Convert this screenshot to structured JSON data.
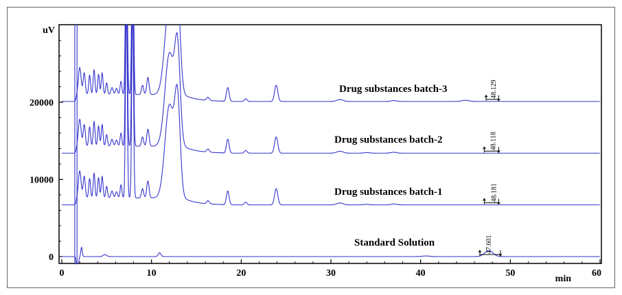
{
  "chart_data": {
    "type": "line",
    "title": "",
    "xlabel": "min",
    "ylabel": "uV",
    "xlim": [
      0,
      60
    ],
    "ylim": [
      -1000,
      30000
    ],
    "x_ticks": [
      0,
      10,
      20,
      30,
      40,
      50,
      60
    ],
    "x_tick_labels": [
      "0",
      "10",
      "20",
      "30",
      "40",
      "50",
      "60"
    ],
    "y_ticks": [
      0,
      10000,
      20000
    ],
    "y_tick_labels": [
      "0",
      "10000",
      "20000"
    ],
    "grid": false,
    "line_color": "#3333cc",
    "series": [
      {
        "name": "Standard Solution",
        "baseline": 0,
        "peaks": [
          {
            "rt": 1.75,
            "height": -2000,
            "width": 0.1
          },
          {
            "rt": 2.2,
            "height": 1200,
            "width": 0.08
          },
          {
            "rt": 4.8,
            "height": 250,
            "width": 0.2
          },
          {
            "rt": 10.9,
            "height": 500,
            "width": 0.15
          },
          {
            "rt": 40.6,
            "height": 80,
            "width": 0.4
          },
          {
            "rt": 47.6,
            "height": 800,
            "width": 0.45
          }
        ],
        "peak_label": "47.601",
        "peak_label_rt": 47.601
      },
      {
        "name": "Drug substances batch-1",
        "baseline": 6700,
        "peaks": [
          {
            "rt": 2.0,
            "height": 3500,
            "width": 0.15
          },
          {
            "rt": 2.5,
            "height": 2800,
            "width": 0.12
          },
          {
            "rt": 3.1,
            "height": 2500,
            "width": 0.1
          },
          {
            "rt": 3.6,
            "height": 3200,
            "width": 0.1
          },
          {
            "rt": 4.1,
            "height": 2600,
            "width": 0.1
          },
          {
            "rt": 4.5,
            "height": 2800,
            "width": 0.1
          },
          {
            "rt": 5.0,
            "height": 1500,
            "width": 0.1
          },
          {
            "rt": 5.6,
            "height": 900,
            "width": 0.12
          },
          {
            "rt": 6.1,
            "height": 800,
            "width": 0.12
          },
          {
            "rt": 6.6,
            "height": 1700,
            "width": 0.1
          },
          {
            "rt": 7.2,
            "height": 25000,
            "width": 0.1
          },
          {
            "rt": 7.9,
            "height": 25000,
            "width": 0.1
          },
          {
            "rt": 9.0,
            "height": 1200,
            "width": 0.12
          },
          {
            "rt": 9.6,
            "height": 2200,
            "width": 0.13
          },
          {
            "rt": 12.0,
            "height": 12000,
            "width": 0.5
          },
          {
            "rt": 12.9,
            "height": 12000,
            "width": 0.3
          },
          {
            "rt": 16.3,
            "height": 400,
            "width": 0.15
          },
          {
            "rt": 18.5,
            "height": 1800,
            "width": 0.15
          },
          {
            "rt": 20.5,
            "height": 350,
            "width": 0.15
          },
          {
            "rt": 23.9,
            "height": 2100,
            "width": 0.18
          },
          {
            "rt": 31.0,
            "height": 250,
            "width": 0.35
          },
          {
            "rt": 34.0,
            "height": 80,
            "width": 0.3
          },
          {
            "rt": 37.0,
            "height": 120,
            "width": 0.3
          }
        ],
        "peak_label": "48.181",
        "peak_label_rt": 48.181
      },
      {
        "name": "Drug substances batch-2",
        "baseline": 13400,
        "peaks": [
          {
            "rt": 2.0,
            "height": 3500,
            "width": 0.15
          },
          {
            "rt": 2.5,
            "height": 2800,
            "width": 0.12
          },
          {
            "rt": 3.1,
            "height": 2500,
            "width": 0.1
          },
          {
            "rt": 3.6,
            "height": 3200,
            "width": 0.1
          },
          {
            "rt": 4.1,
            "height": 2600,
            "width": 0.1
          },
          {
            "rt": 4.5,
            "height": 2800,
            "width": 0.1
          },
          {
            "rt": 5.0,
            "height": 1500,
            "width": 0.1
          },
          {
            "rt": 5.6,
            "height": 900,
            "width": 0.12
          },
          {
            "rt": 6.1,
            "height": 800,
            "width": 0.12
          },
          {
            "rt": 6.6,
            "height": 1700,
            "width": 0.1
          },
          {
            "rt": 7.2,
            "height": 25000,
            "width": 0.1
          },
          {
            "rt": 7.9,
            "height": 25000,
            "width": 0.1
          },
          {
            "rt": 9.0,
            "height": 1200,
            "width": 0.12
          },
          {
            "rt": 9.6,
            "height": 2200,
            "width": 0.13
          },
          {
            "rt": 12.0,
            "height": 12000,
            "width": 0.5
          },
          {
            "rt": 12.9,
            "height": 12000,
            "width": 0.3
          },
          {
            "rt": 16.3,
            "height": 400,
            "width": 0.15
          },
          {
            "rt": 18.5,
            "height": 1800,
            "width": 0.15
          },
          {
            "rt": 20.5,
            "height": 350,
            "width": 0.15
          },
          {
            "rt": 23.9,
            "height": 2100,
            "width": 0.18
          },
          {
            "rt": 31.0,
            "height": 250,
            "width": 0.35
          },
          {
            "rt": 34.0,
            "height": 80,
            "width": 0.3
          },
          {
            "rt": 37.0,
            "height": 120,
            "width": 0.3
          }
        ],
        "peak_label": "48.118",
        "peak_label_rt": 48.118
      },
      {
        "name": "Drug substances batch-3",
        "baseline": 20100,
        "peaks": [
          {
            "rt": 2.0,
            "height": 3500,
            "width": 0.15
          },
          {
            "rt": 2.5,
            "height": 2800,
            "width": 0.12
          },
          {
            "rt": 3.1,
            "height": 2500,
            "width": 0.1
          },
          {
            "rt": 3.6,
            "height": 3200,
            "width": 0.1
          },
          {
            "rt": 4.1,
            "height": 2600,
            "width": 0.1
          },
          {
            "rt": 4.5,
            "height": 2800,
            "width": 0.1
          },
          {
            "rt": 5.0,
            "height": 1500,
            "width": 0.1
          },
          {
            "rt": 5.6,
            "height": 900,
            "width": 0.12
          },
          {
            "rt": 6.1,
            "height": 800,
            "width": 0.12
          },
          {
            "rt": 6.6,
            "height": 1700,
            "width": 0.1
          },
          {
            "rt": 7.2,
            "height": 25000,
            "width": 0.1
          },
          {
            "rt": 7.9,
            "height": 25000,
            "width": 0.1
          },
          {
            "rt": 9.0,
            "height": 1200,
            "width": 0.12
          },
          {
            "rt": 9.6,
            "height": 2200,
            "width": 0.13
          },
          {
            "rt": 12.0,
            "height": 12000,
            "width": 0.5
          },
          {
            "rt": 12.9,
            "height": 12000,
            "width": 0.3
          },
          {
            "rt": 16.3,
            "height": 400,
            "width": 0.15
          },
          {
            "rt": 18.5,
            "height": 1800,
            "width": 0.15
          },
          {
            "rt": 20.5,
            "height": 350,
            "width": 0.15
          },
          {
            "rt": 23.9,
            "height": 2100,
            "width": 0.18
          },
          {
            "rt": 31.0,
            "height": 250,
            "width": 0.35
          },
          {
            "rt": 37.0,
            "height": 120,
            "width": 0.3
          },
          {
            "rt": 45.0,
            "height": 150,
            "width": 0.4
          }
        ],
        "peak_label": "48.129",
        "peak_label_rt": 48.129
      }
    ],
    "integration_marks": [
      {
        "series": "Standard Solution",
        "start": 46.6,
        "end": 48.9
      },
      {
        "series": "Drug substances batch-1",
        "start": 47.1,
        "end": 48.7
      },
      {
        "series": "Drug substances batch-2",
        "start": 47.1,
        "end": 48.7
      },
      {
        "series": "Drug substances batch-3",
        "start": 47.3,
        "end": 48.7
      }
    ]
  }
}
